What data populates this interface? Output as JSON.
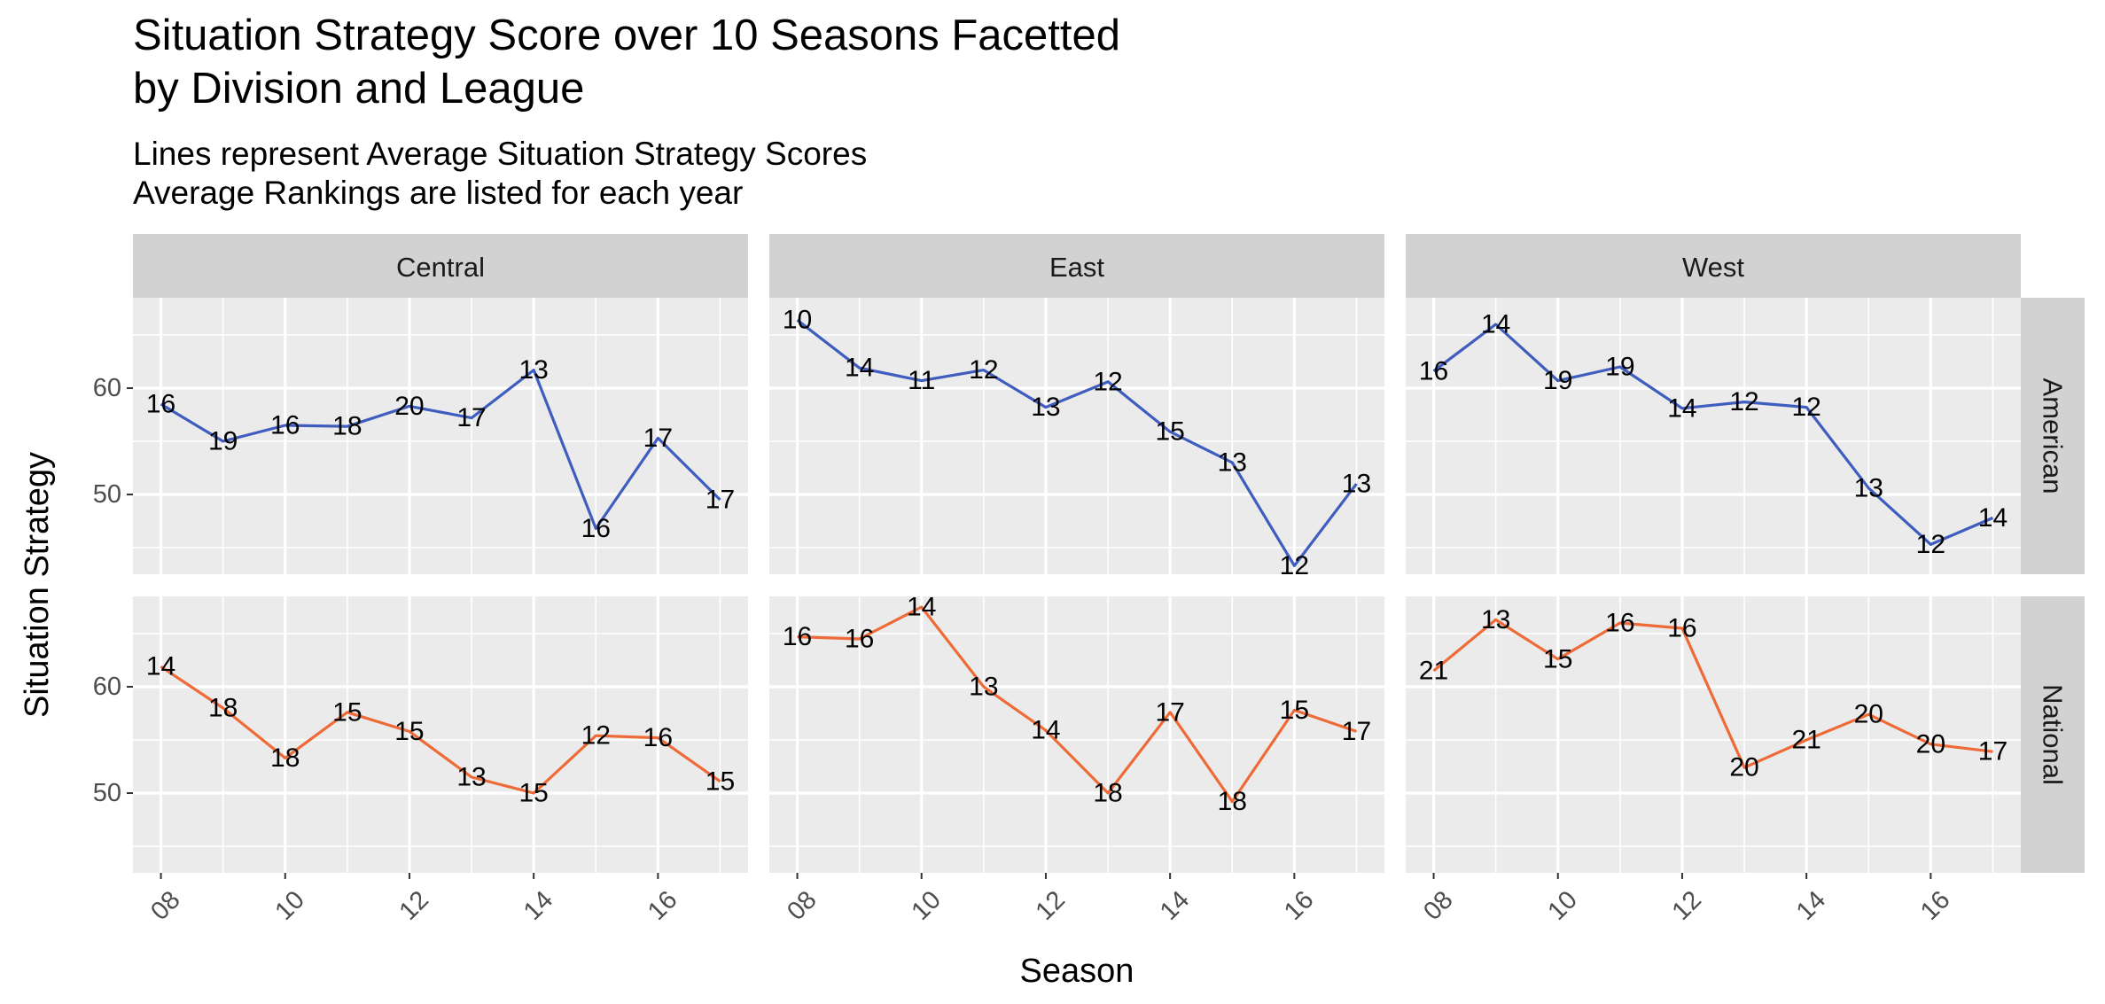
{
  "chart_data": {
    "type": "line",
    "title": "Situation Strategy Score over 10 Seasons Facetted\n         by Division and League",
    "subtitle": "Lines represent Average Situation Strategy Scores\nAverage Rankings are listed for each year",
    "xlabel": "Season",
    "ylabel": "Situation Strategy",
    "x": [
      8,
      9,
      10,
      11,
      12,
      13,
      14,
      15,
      16,
      17
    ],
    "x_tick_labels": [
      "08",
      "10",
      "12",
      "14",
      "16"
    ],
    "x_ticks": [
      8,
      10,
      12,
      14,
      16
    ],
    "xlim": [
      7.55,
      17.45
    ],
    "y_tick_labels": [
      "50",
      "60"
    ],
    "y_ticks": [
      50,
      60
    ],
    "ylim": [
      42.5,
      68.5
    ],
    "columns": [
      "Central",
      "East",
      "West"
    ],
    "rows": [
      "American",
      "National"
    ],
    "colors": {
      "American": "#3E5DBE",
      "National": "#EE6A37"
    },
    "grid": true,
    "panels": [
      {
        "column": "Central",
        "row": "American",
        "values": [
          58.5,
          55.0,
          56.5,
          56.4,
          58.3,
          57.2,
          61.7,
          46.8,
          55.3,
          49.5
        ],
        "labels": [
          "16",
          "19",
          "16",
          "18",
          "20",
          "17",
          "13",
          "16",
          "17",
          "17"
        ]
      },
      {
        "column": "East",
        "row": "American",
        "values": [
          66.4,
          61.9,
          60.7,
          61.7,
          58.2,
          60.6,
          55.9,
          53.0,
          43.3,
          51.0
        ],
        "labels": [
          "10",
          "14",
          "11",
          "12",
          "13",
          "12",
          "15",
          "13",
          "12",
          "13"
        ]
      },
      {
        "column": "West",
        "row": "American",
        "values": [
          61.6,
          66.0,
          60.7,
          62.0,
          58.1,
          58.7,
          58.2,
          50.6,
          45.3,
          47.8
        ],
        "labels": [
          "16",
          "14",
          "19",
          "19",
          "14",
          "12",
          "12",
          "13",
          "12",
          "14"
        ]
      },
      {
        "column": "Central",
        "row": "National",
        "values": [
          61.9,
          58.0,
          53.3,
          57.6,
          55.8,
          51.5,
          50.0,
          55.4,
          55.2,
          51.1
        ],
        "labels": [
          "14",
          "18",
          "18",
          "15",
          "15",
          "13",
          "15",
          "12",
          "16",
          "15"
        ]
      },
      {
        "column": "East",
        "row": "National",
        "values": [
          64.7,
          64.5,
          67.5,
          60.0,
          55.9,
          50.0,
          57.6,
          49.2,
          57.8,
          55.8
        ],
        "labels": [
          "16",
          "16",
          "14",
          "13",
          "14",
          "18",
          "17",
          "18",
          "15",
          "17"
        ]
      },
      {
        "column": "West",
        "row": "National",
        "values": [
          61.5,
          66.3,
          62.6,
          66.0,
          65.5,
          52.4,
          55.0,
          57.4,
          54.6,
          53.9
        ],
        "labels": [
          "21",
          "13",
          "15",
          "16",
          "16",
          "20",
          "21",
          "20",
          "20",
          "17"
        ]
      }
    ]
  }
}
